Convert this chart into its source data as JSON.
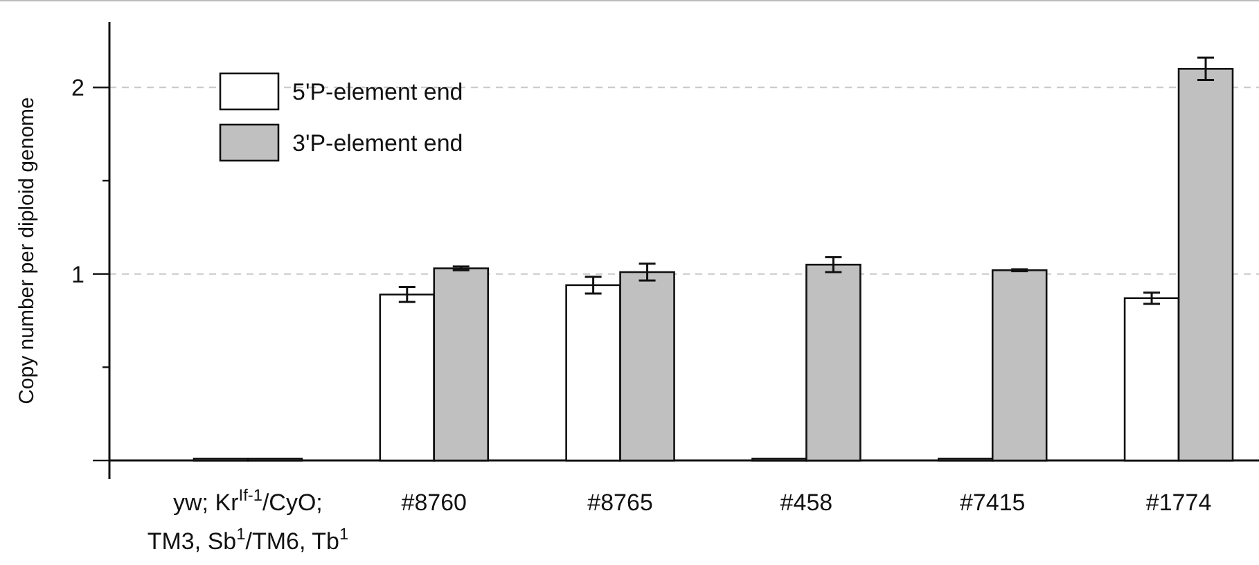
{
  "chart_data": {
    "type": "bar",
    "ylabel": "Copy number per diploid genome",
    "categories": [
      "yw; Kr$^{If-1}$/CyO;\nTM3, Sb$^{1}$/TM6, Tb$^{1}$",
      "#8760",
      "#8765",
      "#458",
      "#7415",
      "#1774"
    ],
    "series": [
      {
        "name": "5'P-element end",
        "color": "#ffffff",
        "values": [
          0.01,
          0.89,
          0.94,
          0.01,
          0.01,
          0.87
        ],
        "errors": [
          null,
          0.04,
          0.045,
          null,
          null,
          0.03
        ]
      },
      {
        "name": "3'P-element end",
        "color": "#c0c0c0",
        "values": [
          0.01,
          1.03,
          1.01,
          1.05,
          1.02,
          2.1
        ],
        "errors": [
          null,
          0.01,
          0.045,
          0.04,
          0.005,
          0.06
        ]
      }
    ],
    "ylim": [
      -0.1,
      2.35
    ],
    "yticks": [
      {
        "value": 0,
        "label": null
      },
      {
        "value": 0.5,
        "label": null
      },
      1,
      {
        "value": 1.5,
        "label": null
      },
      2
    ],
    "grid": "y",
    "legend": "top left"
  }
}
